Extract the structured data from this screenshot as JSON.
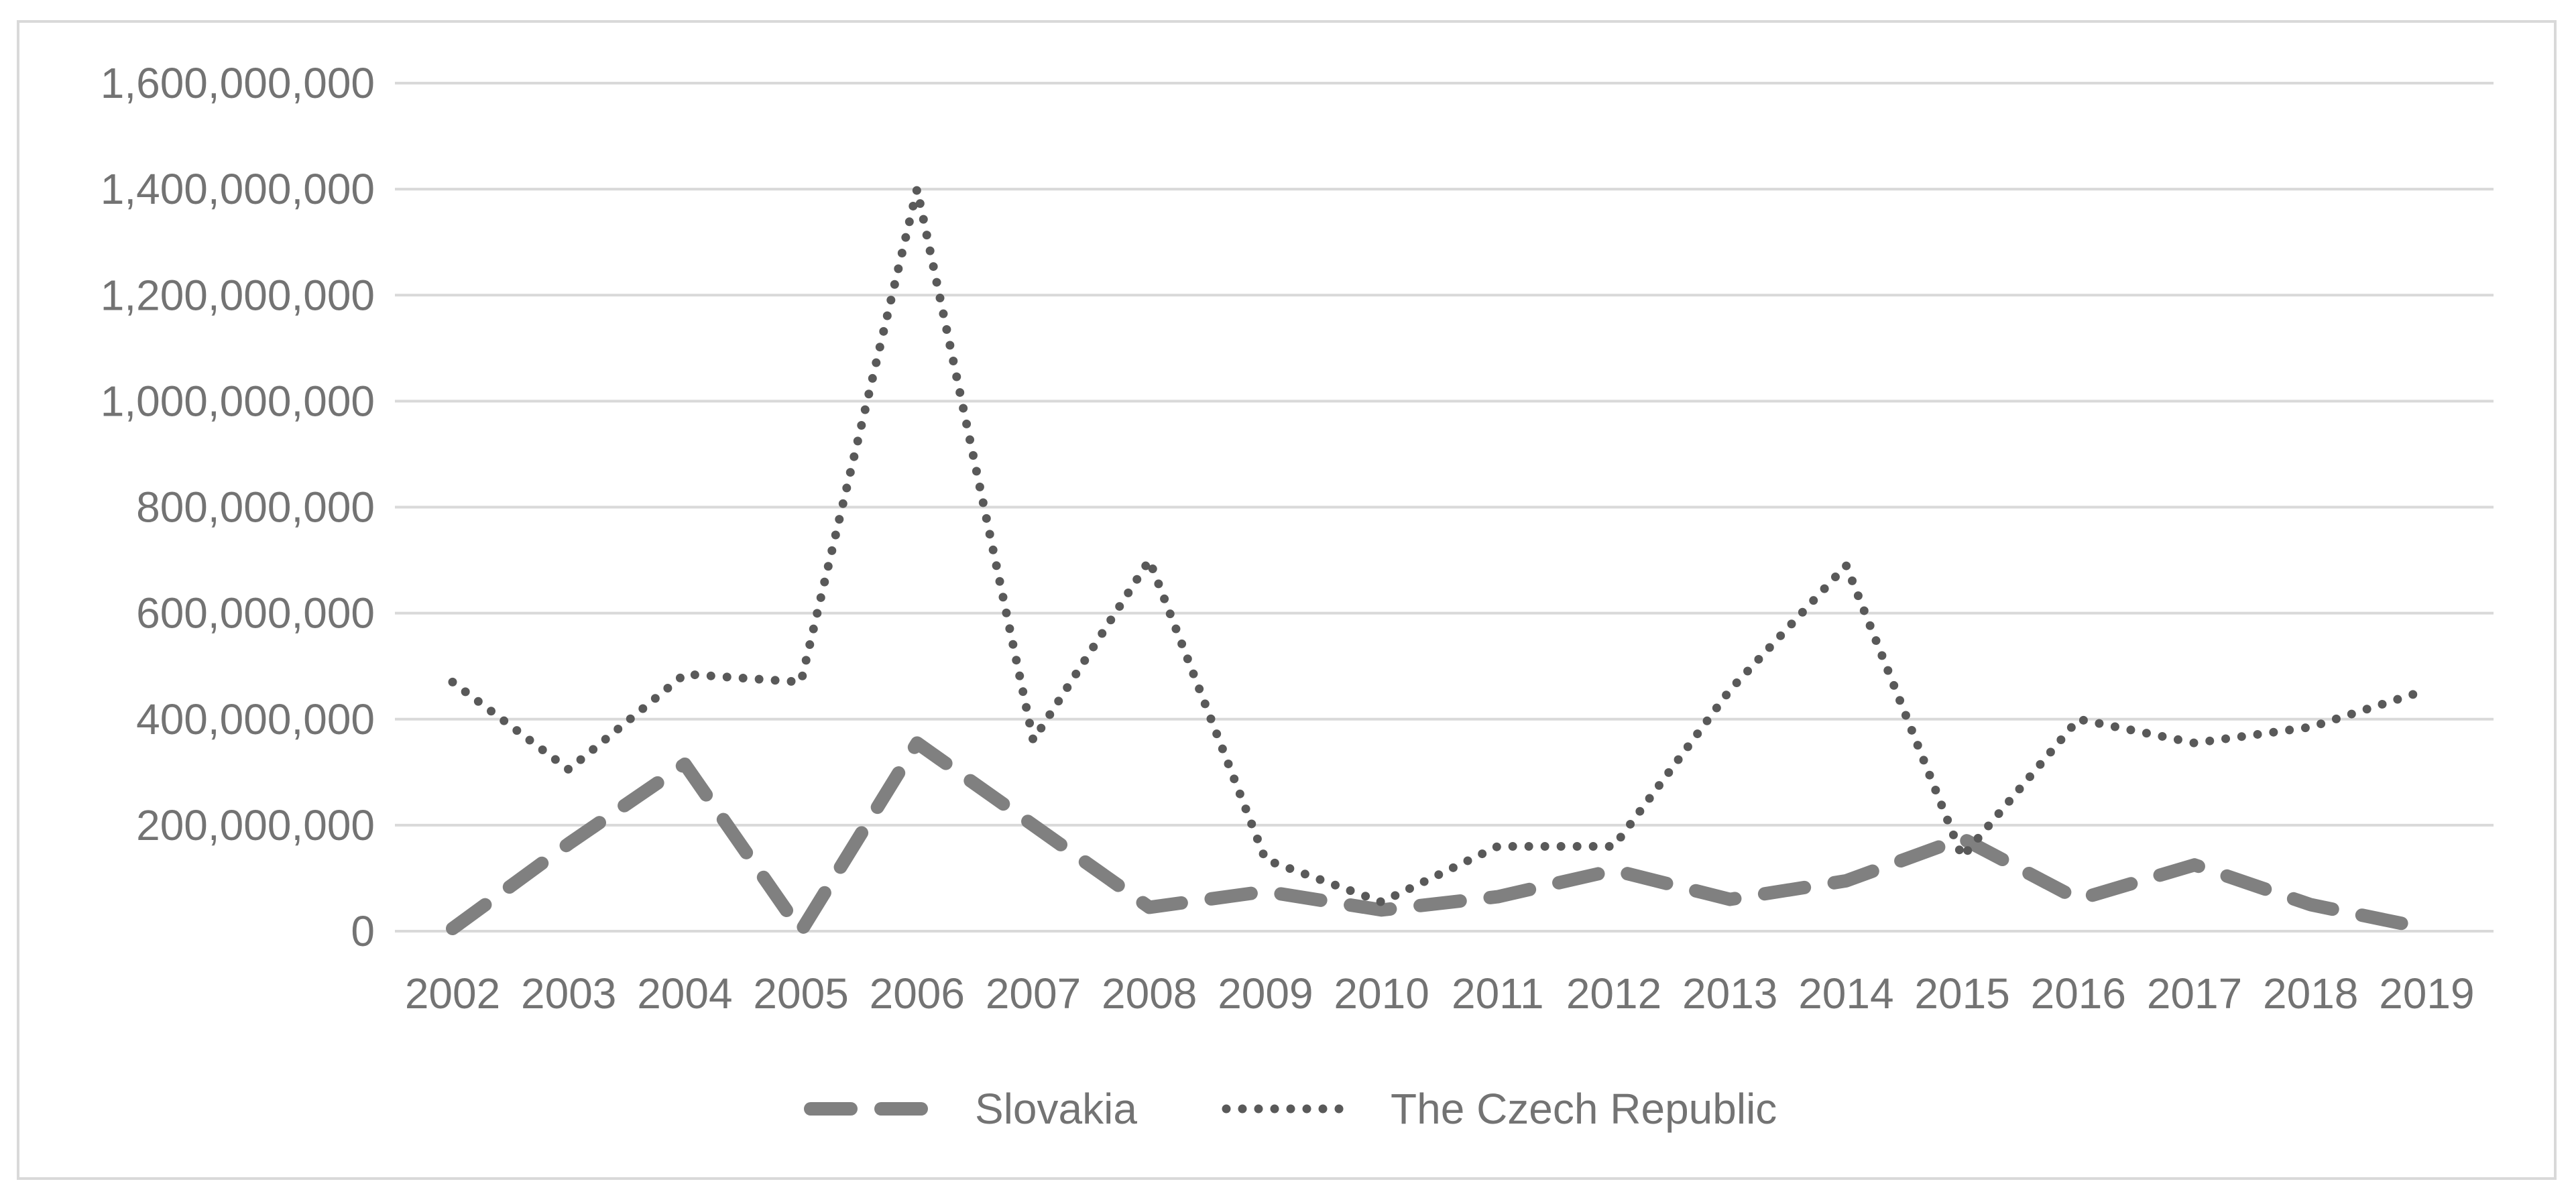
{
  "chart_data": {
    "type": "line",
    "title": "",
    "xlabel": "",
    "ylabel": "",
    "categories": [
      "2002",
      "2003",
      "2004",
      "2005",
      "2006",
      "2007",
      "2008",
      "2009",
      "2010",
      "2011",
      "2012",
      "2013",
      "2014",
      "2015",
      "2016",
      "2017",
      "2018",
      "2019"
    ],
    "ylim": [
      0,
      1600000000
    ],
    "y_ticks": [
      0,
      200000000,
      400000000,
      600000000,
      800000000,
      1000000000,
      1200000000,
      1400000000,
      1600000000
    ],
    "y_tick_labels": [
      "0",
      "200,000,000",
      "400,000,000",
      "600,000,000",
      "800,000,000",
      "1,000,000,000",
      "1,200,000,000",
      "1,400,000,000",
      "1,600,000,000"
    ],
    "grid": true,
    "legend_position": "bottom",
    "series": [
      {
        "name": "Slovakia",
        "style": "dashed",
        "color": "#808080",
        "values": [
          5000000,
          165000000,
          315000000,
          0,
          355000000,
          200000000,
          45000000,
          75000000,
          40000000,
          65000000,
          115000000,
          60000000,
          95000000,
          175000000,
          60000000,
          125000000,
          50000000,
          5000000
        ]
      },
      {
        "name": "The Czech Republic",
        "style": "dotted",
        "color": "#595959",
        "values": [
          470000000,
          305000000,
          485000000,
          470000000,
          1400000000,
          360000000,
          700000000,
          135000000,
          55000000,
          160000000,
          160000000,
          455000000,
          690000000,
          140000000,
          400000000,
          355000000,
          385000000,
          455000000
        ]
      }
    ]
  }
}
